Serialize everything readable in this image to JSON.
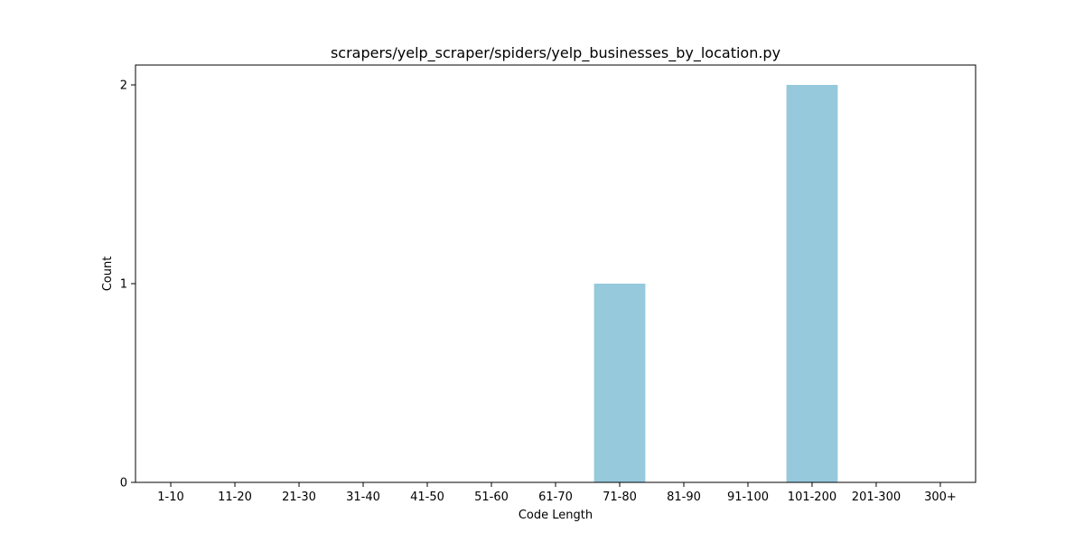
{
  "chart_data": {
    "type": "bar",
    "title": "scrapers/yelp_scraper/spiders/yelp_businesses_by_location.py",
    "xlabel": "Code Length",
    "ylabel": "Count",
    "categories": [
      "1-10",
      "11-20",
      "21-30",
      "31-40",
      "41-50",
      "51-60",
      "61-70",
      "71-80",
      "81-90",
      "91-100",
      "101-200",
      "201-300",
      "300+"
    ],
    "values": [
      0,
      0,
      0,
      0,
      0,
      0,
      0,
      1,
      0,
      0,
      2,
      0,
      0
    ],
    "ylim": [
      0,
      2.1
    ],
    "yticks": [
      0,
      1,
      2
    ],
    "bar_color": "#96c9dc",
    "grid": false,
    "legend": "none"
  }
}
